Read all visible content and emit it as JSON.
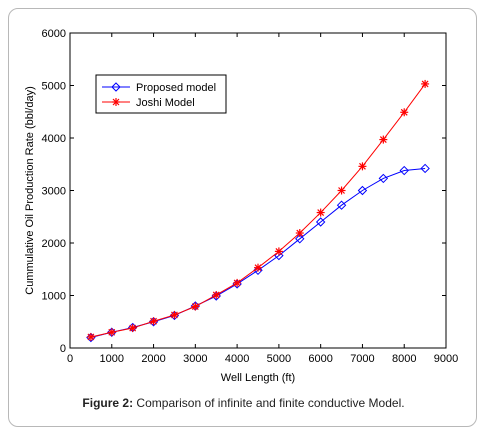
{
  "caption": {
    "label": "Figure 2:",
    "text": " Comparison of infinite and finite conductive Model."
  },
  "chart_data": {
    "type": "line",
    "xlabel": "Well Length (ft)",
    "ylabel": "Cummulative Oil Production Rate (bbl/day)",
    "xlim": [
      0,
      9000
    ],
    "ylim": [
      0,
      6000
    ],
    "xticks": [
      "0",
      "1000",
      "2000",
      "3000",
      "4000",
      "5000",
      "6000",
      "7000",
      "8000",
      "9000"
    ],
    "yticks": [
      "0",
      "1000",
      "2000",
      "3000",
      "4000",
      "5000",
      "6000"
    ],
    "x": [
      500,
      1000,
      1500,
      2000,
      2500,
      3000,
      3500,
      4000,
      4500,
      5000,
      5500,
      6000,
      6500,
      7000,
      7500,
      8000,
      8500
    ],
    "series": [
      {
        "name": "Proposed model",
        "color": "#0000ff",
        "marker": "diamond",
        "values": [
          200,
          300,
          390,
          500,
          620,
          800,
          990,
          1220,
          1480,
          1760,
          2080,
          2400,
          2720,
          3000,
          3230,
          3380,
          3420
        ]
      },
      {
        "name": "Joshi Model",
        "color": "#ff0000",
        "marker": "star",
        "values": [
          210,
          300,
          380,
          510,
          630,
          790,
          1010,
          1240,
          1530,
          1840,
          2190,
          2580,
          3000,
          3460,
          3970,
          4490,
          5030
        ]
      }
    ],
    "legend": "top-left",
    "grid": false
  }
}
